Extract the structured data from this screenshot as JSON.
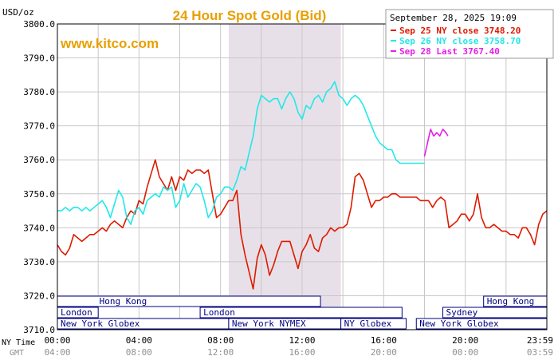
{
  "header": {
    "units": "USD/oz",
    "title": "24 Hour Spot Gold (Bid)",
    "watermark": "www.kitco.com",
    "date": "September 28, 2025 19:09"
  },
  "colors": {
    "title": "#e8a000",
    "watermark": "#e8a000",
    "grid": "#c8c8c8",
    "shade": "#e8e0e8",
    "market_band": "#000080",
    "axis_text": "#000000",
    "gmt_text": "#909090",
    "sep25": "#dd1a00",
    "sep26": "#22e8e8",
    "sep28": "#e61ee6"
  },
  "axis_labels": {
    "ny_time": "NY Time",
    "gmt": "GMT"
  },
  "markets": [
    {
      "name": "Hong Kong",
      "row": 0,
      "start": 0.0,
      "end": 12.9,
      "label_start": 1.9
    },
    {
      "name": "Hong Kong",
      "row": 0,
      "start": 20.9,
      "end": 24.0,
      "label_start": 20.9
    },
    {
      "name": "London",
      "row": 1,
      "start": 0.0,
      "end": 2.0,
      "label_start": 0.0
    },
    {
      "name": "London",
      "row": 1,
      "start": 7.0,
      "end": 16.9,
      "label_start": 7.0
    },
    {
      "name": "Sydney",
      "row": 1,
      "start": 18.9,
      "end": 24.0,
      "label_start": 18.9
    },
    {
      "name": "New York Globex",
      "row": 2,
      "start": 0.0,
      "end": 8.4,
      "label_start": 0.0
    },
    {
      "name": "New York NYMEX",
      "row": 2,
      "start": 8.4,
      "end": 13.9,
      "label_start": 8.4
    },
    {
      "name": "NY Globex",
      "row": 2,
      "start": 13.9,
      "end": 17.1,
      "label_start": 13.9
    },
    {
      "name": "New York Globex",
      "row": 2,
      "start": 17.6,
      "end": 24.0,
      "label_start": 17.6
    }
  ],
  "chart_data": {
    "type": "line",
    "xlabel": "NY Time",
    "ylabel": "USD/oz",
    "xlim": [
      0,
      24
    ],
    "ylim": [
      3710,
      3800
    ],
    "x_ticks_ny": [
      "00:00",
      "04:00",
      "08:00",
      "12:00",
      "16:00",
      "20:00",
      "23:59"
    ],
    "x_ticks_gmt": [
      "04:00",
      "08:00",
      "12:00",
      "16:00",
      "20:00",
      "00:00",
      "03:59"
    ],
    "y_ticks": [
      "3710.0",
      "3720.0",
      "3730.0",
      "3740.0",
      "3750.0",
      "3760.0",
      "3770.0",
      "3780.0",
      "3790.0",
      "3800.0"
    ],
    "shaded_region": [
      8.4,
      13.9
    ],
    "grid": true,
    "legend_position": "top-right",
    "series": [
      {
        "name": "Sep 25 NY close 3748.20",
        "x": [
          0.0,
          0.2,
          0.4,
          0.6,
          0.8,
          1.0,
          1.2,
          1.4,
          1.6,
          1.8,
          2.0,
          2.2,
          2.4,
          2.6,
          2.8,
          3.0,
          3.2,
          3.4,
          3.6,
          3.8,
          4.0,
          4.2,
          4.4,
          4.6,
          4.8,
          5.0,
          5.2,
          5.4,
          5.6,
          5.8,
          6.0,
          6.2,
          6.4,
          6.6,
          6.8,
          7.0,
          7.2,
          7.4,
          7.6,
          7.8,
          8.0,
          8.2,
          8.4,
          8.6,
          8.8,
          9.0,
          9.2,
          9.4,
          9.6,
          9.8,
          10.0,
          10.2,
          10.4,
          10.6,
          10.8,
          11.0,
          11.2,
          11.4,
          11.6,
          11.8,
          12.0,
          12.2,
          12.4,
          12.6,
          12.8,
          13.0,
          13.2,
          13.4,
          13.6,
          13.8,
          14.0,
          14.2,
          14.4,
          14.6,
          14.8,
          15.0,
          15.2,
          15.4,
          15.6,
          15.8,
          16.0,
          16.2,
          16.4,
          16.6,
          16.8,
          17.0,
          17.2,
          17.4,
          17.6,
          17.8,
          18.0,
          18.2,
          18.4,
          18.6,
          18.8,
          19.0,
          19.2,
          19.4,
          19.6,
          19.8,
          20.0,
          20.2,
          20.4,
          20.6,
          20.8,
          21.0,
          21.2,
          21.4,
          21.6,
          21.8,
          22.0,
          22.2,
          22.4,
          22.6,
          22.8,
          23.0,
          23.2,
          23.4,
          23.6,
          23.8,
          24.0
        ],
        "y": [
          3735,
          3733,
          3732,
          3734,
          3738,
          3737,
          3736,
          3737,
          3738,
          3738,
          3739,
          3740,
          3739,
          3741,
          3742,
          3741,
          3740,
          3743,
          3745,
          3744,
          3748,
          3747,
          3752,
          3756,
          3760,
          3755,
          3753,
          3751,
          3755,
          3751,
          3755,
          3754,
          3757,
          3756,
          3757,
          3757,
          3756,
          3757,
          3750,
          3743,
          3744,
          3746,
          3748,
          3748,
          3751,
          3738,
          3732,
          3727,
          3722,
          3731,
          3735,
          3732,
          3726,
          3729,
          3733,
          3736,
          3736,
          3736,
          3732,
          3728,
          3733,
          3735,
          3738,
          3734,
          3733,
          3737,
          3738,
          3740,
          3739,
          3740,
          3740,
          3741,
          3746,
          3755,
          3756,
          3754,
          3750,
          3746,
          3748,
          3748,
          3749,
          3749,
          3750,
          3750,
          3749,
          3749,
          3749,
          3749,
          3749,
          3748,
          3748,
          3748,
          3746,
          3748,
          3749,
          3748,
          3740,
          3741,
          3742,
          3744,
          3744,
          3742,
          3744,
          3750,
          3743,
          3740,
          3740,
          3741,
          3740,
          3739,
          3739,
          3738,
          3738,
          3737,
          3740,
          3740,
          3738,
          3735,
          3741,
          3744,
          3745
        ]
      },
      {
        "name": "Sep 26 NY close 3758.70",
        "x": [
          0.0,
          0.2,
          0.4,
          0.6,
          0.8,
          1.0,
          1.2,
          1.4,
          1.6,
          1.8,
          2.0,
          2.2,
          2.4,
          2.6,
          2.8,
          3.0,
          3.2,
          3.4,
          3.6,
          3.8,
          4.0,
          4.2,
          4.4,
          4.6,
          4.8,
          5.0,
          5.2,
          5.4,
          5.6,
          5.8,
          6.0,
          6.2,
          6.4,
          6.6,
          6.8,
          7.0,
          7.2,
          7.4,
          7.6,
          7.8,
          8.0,
          8.2,
          8.4,
          8.6,
          8.8,
          9.0,
          9.2,
          9.4,
          9.6,
          9.8,
          10.0,
          10.2,
          10.4,
          10.6,
          10.8,
          11.0,
          11.2,
          11.4,
          11.6,
          11.8,
          12.0,
          12.2,
          12.4,
          12.6,
          12.8,
          13.0,
          13.2,
          13.4,
          13.6,
          13.8,
          14.0,
          14.2,
          14.4,
          14.6,
          14.8,
          15.0,
          15.2,
          15.4,
          15.6,
          15.8,
          16.0,
          16.2,
          16.4,
          16.6,
          16.8,
          17.0,
          17.2,
          17.4,
          17.6,
          17.8,
          18.0
        ],
        "y": [
          3745,
          3745,
          3746,
          3745,
          3746,
          3746,
          3745,
          3746,
          3745,
          3746,
          3747,
          3748,
          3746,
          3743,
          3747,
          3751,
          3749,
          3743,
          3741,
          3745,
          3746,
          3744,
          3748,
          3749,
          3750,
          3749,
          3752,
          3751,
          3752,
          3746,
          3748,
          3753,
          3749,
          3751,
          3753,
          3752,
          3748,
          3743,
          3745,
          3749,
          3750,
          3752,
          3752,
          3751,
          3754,
          3758,
          3757,
          3762,
          3767,
          3775,
          3779,
          3778,
          3777,
          3778,
          3778,
          3775,
          3778,
          3780,
          3778,
          3774,
          3772,
          3776,
          3775,
          3778,
          3779,
          3777,
          3780,
          3781,
          3783,
          3779,
          3778,
          3776,
          3778,
          3779,
          3778,
          3776,
          3773,
          3770,
          3767,
          3765,
          3764,
          3763,
          3763,
          3760,
          3759,
          3759,
          3759,
          3759,
          3759,
          3759,
          3759
        ]
      },
      {
        "name": "Sep 28 Last 3767.40",
        "x": [
          18.0,
          18.15,
          18.3,
          18.45,
          18.6,
          18.75,
          18.9,
          19.05,
          19.15
        ],
        "y": [
          3761,
          3765,
          3769,
          3767,
          3768,
          3767,
          3769,
          3768,
          3767
        ]
      }
    ]
  }
}
